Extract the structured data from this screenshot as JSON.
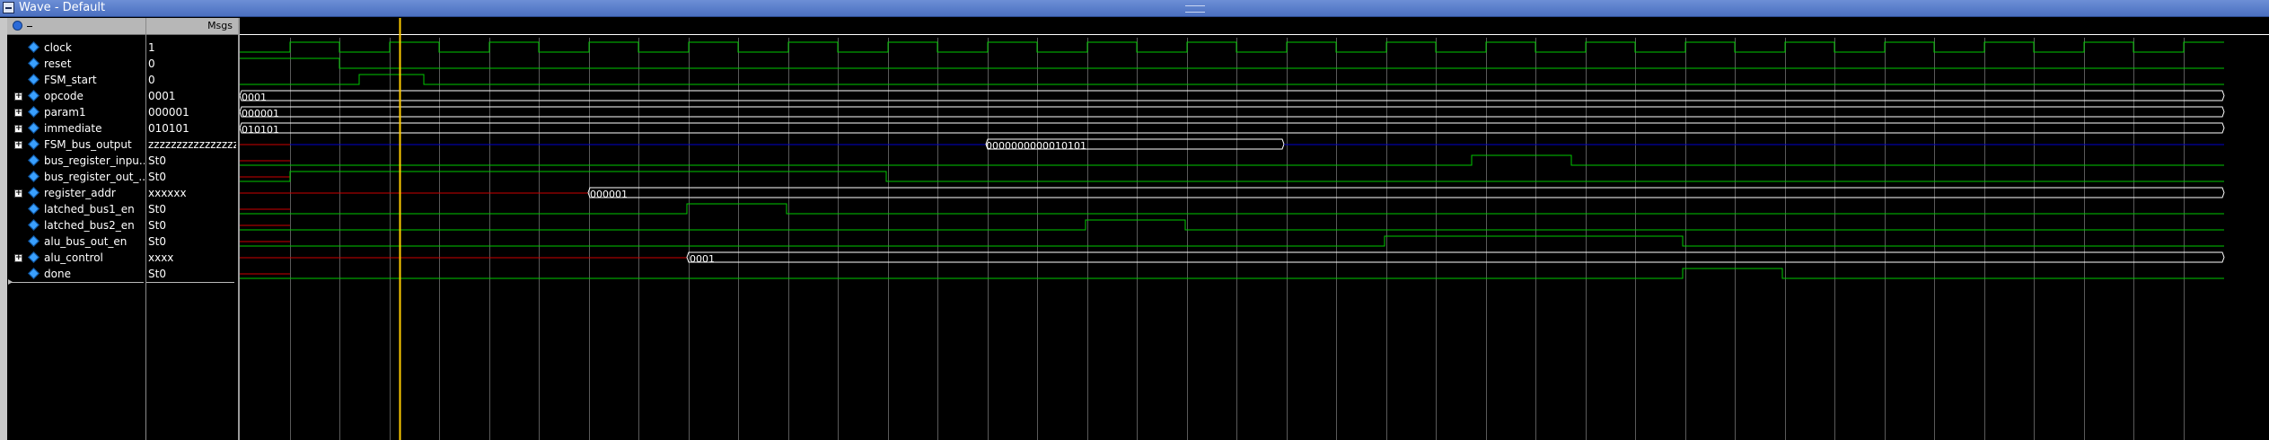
{
  "window": {
    "title": "Wave - Default"
  },
  "value_header": {
    "label": "Msgs"
  },
  "colors": {
    "background": "#000000",
    "signal": "#00c800",
    "bus_z": "#0000cc",
    "undefined": "#cc0000",
    "grid": "#5a5a5a",
    "cursor": "#ffcc00",
    "bus_value": "#ffffff"
  },
  "signals": [
    {
      "name": "clock",
      "value": "1",
      "expandable": false
    },
    {
      "name": "reset",
      "value": "0",
      "expandable": false
    },
    {
      "name": "FSM_start",
      "value": "0",
      "expandable": false
    },
    {
      "name": "opcode",
      "value": "0001",
      "expandable": true
    },
    {
      "name": "param1",
      "value": "000001",
      "expandable": true
    },
    {
      "name": "immediate",
      "value": "010101",
      "expandable": true
    },
    {
      "name": "FSM_bus_output",
      "value": "zzzzzzzzzzzzzzzz",
      "expandable": true
    },
    {
      "name": "bus_register_inpu...",
      "value": "St0",
      "expandable": false
    },
    {
      "name": "bus_register_out_...",
      "value": "St0",
      "expandable": false
    },
    {
      "name": "register_addr",
      "value": "xxxxxx",
      "expandable": true
    },
    {
      "name": "latched_bus1_en",
      "value": "St0",
      "expandable": false
    },
    {
      "name": "latched_bus2_en",
      "value": "St0",
      "expandable": false
    },
    {
      "name": "alu_bus_out_en",
      "value": "St0",
      "expandable": false
    },
    {
      "name": "alu_control",
      "value": "xxxx",
      "expandable": true
    },
    {
      "name": "done",
      "value": "St0",
      "expandable": false
    }
  ],
  "bus_labels": {
    "opcode": "0001",
    "param1": "000001",
    "immediate": "010101",
    "fsm_bus": "0000000000010101",
    "register_addr": "000001",
    "alu_control": "0001"
  }
}
